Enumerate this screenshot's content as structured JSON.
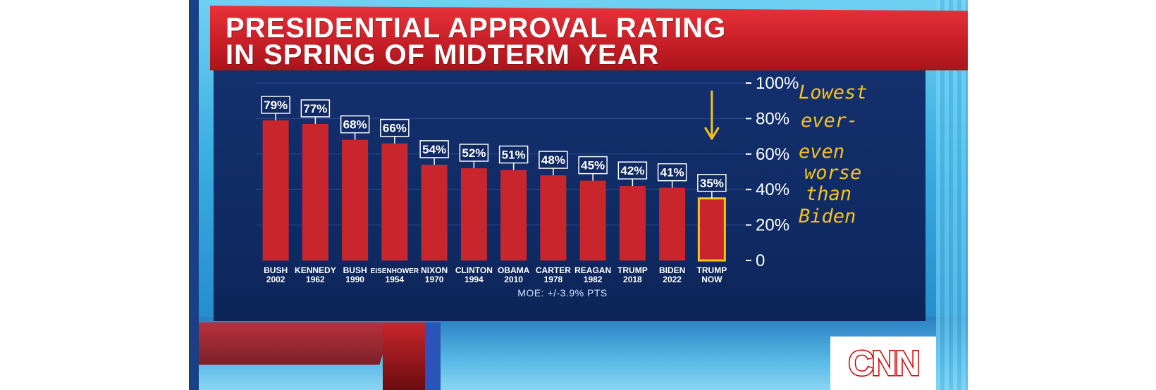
{
  "title": {
    "line1": "PRESIDENTIAL APPROVAL RATING",
    "line2": "IN SPRING OF MIDTERM YEAR"
  },
  "note": {
    "lines": [
      "Lowest",
      "ever-",
      "even",
      "worse",
      "than",
      "Biden"
    ]
  },
  "network_logo": "CNN",
  "colors": {
    "bar": "#c8262c",
    "highlight_outline": "#f5c518",
    "panel": "#13306e",
    "title_banner": "#d7262e",
    "note": "#f7c21a"
  },
  "chart_data": {
    "type": "bar",
    "title": "PRESIDENTIAL APPROVAL RATING IN SPRING OF MIDTERM YEAR",
    "categories": [
      [
        "BUSH",
        "2002"
      ],
      [
        "KENNEDY",
        "1962"
      ],
      [
        "BUSH",
        "1990"
      ],
      [
        "EISENHOWER",
        "1954"
      ],
      [
        "NIXON",
        "1970"
      ],
      [
        "CLINTON",
        "1994"
      ],
      [
        "OBAMA",
        "2010"
      ],
      [
        "CARTER",
        "1978"
      ],
      [
        "REAGAN",
        "1982"
      ],
      [
        "TRUMP",
        "2018"
      ],
      [
        "BIDEN",
        "2022"
      ],
      [
        "TRUMP",
        "NOW"
      ]
    ],
    "values": [
      79,
      77,
      68,
      66,
      54,
      52,
      51,
      48,
      45,
      42,
      41,
      35
    ],
    "value_labels": [
      "79%",
      "77%",
      "68%",
      "66%",
      "54%",
      "52%",
      "51%",
      "48%",
      "45%",
      "42%",
      "41%",
      "35%"
    ],
    "highlighted_index": 11,
    "ylim": [
      0,
      100
    ],
    "yticks": [
      0,
      20,
      40,
      60,
      80,
      100
    ],
    "ytick_labels": [
      "0",
      "20%",
      "40%",
      "60%",
      "80%",
      "100%"
    ],
    "y_axis_side": "right",
    "grid": true,
    "footnote": "MOE: +/-3.9% PTS"
  }
}
